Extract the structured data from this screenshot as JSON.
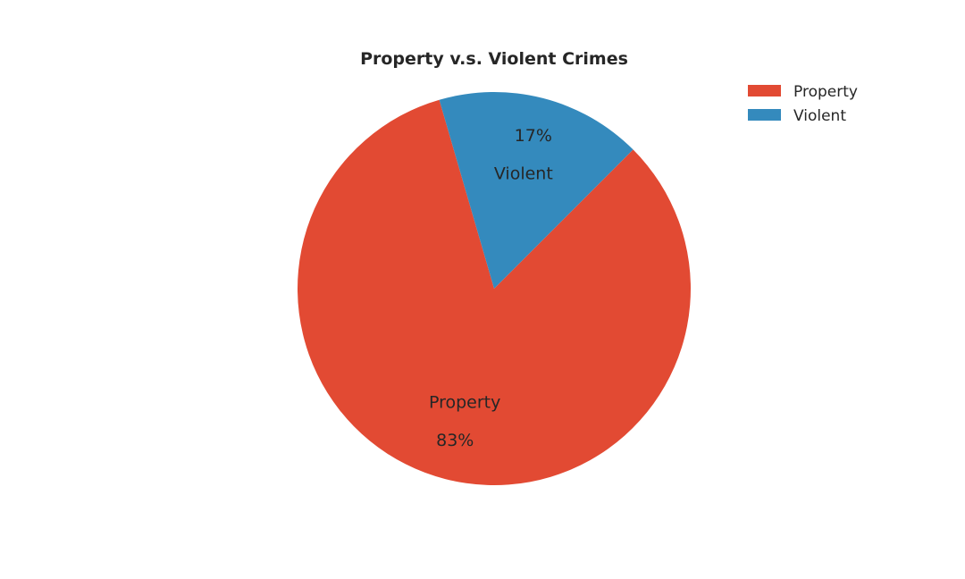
{
  "chart_data": {
    "type": "pie",
    "title": "Property v.s. Violent Crimes",
    "legend_position": "top-right",
    "slices": [
      {
        "label": "Property",
        "value": 83,
        "pct_label": "83%",
        "color": "#e24a33"
      },
      {
        "label": "Violent",
        "value": 17,
        "pct_label": "17%",
        "color": "#348abd"
      }
    ],
    "legend": [
      "Property",
      "Violent"
    ]
  }
}
